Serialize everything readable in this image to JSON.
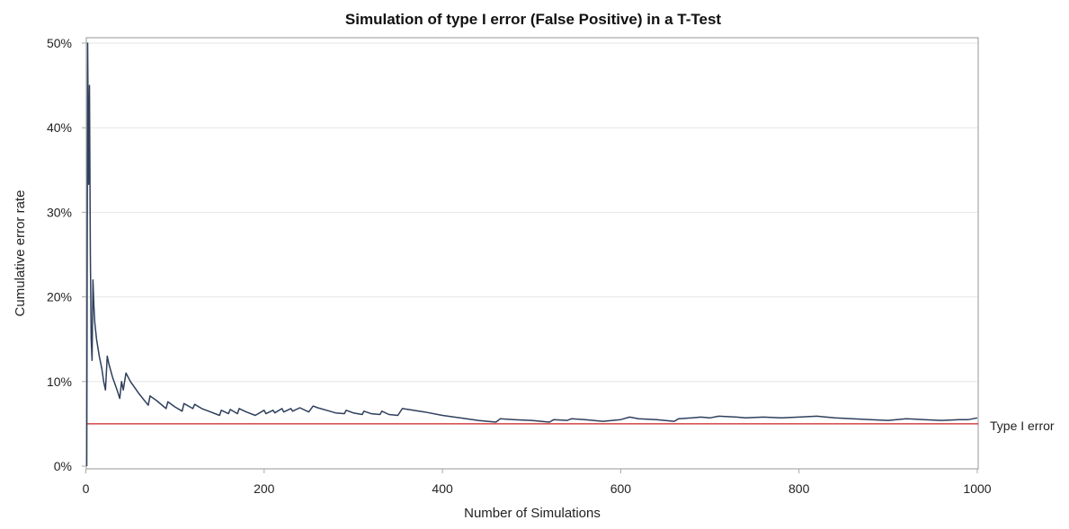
{
  "chart_data": {
    "type": "line",
    "title": "Simulation of type I error (False Positive) in a T-Test",
    "xlabel": "Number of Simulations",
    "ylabel": "Cumulative error rate",
    "xlim": [
      0,
      1000
    ],
    "ylim": [
      0,
      0.5
    ],
    "x_ticks": [
      0,
      200,
      400,
      600,
      800,
      1000
    ],
    "x_tick_labels": [
      "0",
      "200",
      "400",
      "600",
      "800",
      "1000"
    ],
    "y_ticks": [
      0,
      0.1,
      0.2,
      0.3,
      0.4,
      0.5
    ],
    "y_tick_labels": [
      "0%",
      "10%",
      "20%",
      "30%",
      "40%",
      "50%"
    ],
    "grid": "horizontal",
    "series": [
      {
        "color": "#2e3f5c",
        "x": [
          1,
          2,
          3,
          4,
          5,
          6,
          7,
          8,
          9,
          10,
          12,
          15,
          18,
          20,
          22,
          24,
          26,
          30,
          35,
          38,
          40,
          42,
          45,
          50,
          60,
          70,
          72,
          80,
          90,
          92,
          100,
          108,
          110,
          120,
          122,
          130,
          140,
          150,
          152,
          160,
          162,
          170,
          172,
          180,
          190,
          200,
          202,
          210,
          212,
          220,
          222,
          230,
          232,
          240,
          250,
          255,
          260,
          270,
          280,
          290,
          292,
          300,
          310,
          312,
          320,
          330,
          332,
          340,
          350,
          355,
          380,
          400,
          420,
          440,
          460,
          465,
          480,
          500,
          520,
          525,
          540,
          545,
          560,
          580,
          600,
          610,
          620,
          640,
          660,
          665,
          680,
          690,
          700,
          710,
          730,
          740,
          760,
          780,
          800,
          820,
          840,
          860,
          880,
          900,
          920,
          940,
          960,
          980,
          990,
          1000
        ],
        "y": [
          0.0,
          0.5,
          0.333,
          0.45,
          0.25,
          0.15,
          0.125,
          0.22,
          0.19,
          0.17,
          0.15,
          0.13,
          0.115,
          0.1,
          0.09,
          0.13,
          0.12,
          0.105,
          0.09,
          0.08,
          0.1,
          0.09,
          0.11,
          0.1,
          0.085,
          0.072,
          0.083,
          0.077,
          0.068,
          0.076,
          0.07,
          0.065,
          0.074,
          0.068,
          0.073,
          0.068,
          0.064,
          0.06,
          0.066,
          0.062,
          0.067,
          0.062,
          0.068,
          0.064,
          0.06,
          0.066,
          0.062,
          0.066,
          0.063,
          0.068,
          0.064,
          0.068,
          0.065,
          0.069,
          0.064,
          0.071,
          0.069,
          0.066,
          0.063,
          0.062,
          0.066,
          0.063,
          0.061,
          0.065,
          0.062,
          0.061,
          0.065,
          0.061,
          0.06,
          0.068,
          0.064,
          0.06,
          0.057,
          0.054,
          0.052,
          0.056,
          0.055,
          0.054,
          0.052,
          0.055,
          0.054,
          0.056,
          0.055,
          0.053,
          0.055,
          0.058,
          0.056,
          0.055,
          0.053,
          0.056,
          0.057,
          0.058,
          0.057,
          0.059,
          0.058,
          0.057,
          0.058,
          0.057,
          0.058,
          0.059,
          0.057,
          0.056,
          0.055,
          0.054,
          0.056,
          0.055,
          0.054,
          0.055,
          0.055,
          0.057
        ]
      }
    ],
    "reference_line": {
      "y": 0.05,
      "label": "Type I error",
      "color": "#cc2222"
    }
  }
}
